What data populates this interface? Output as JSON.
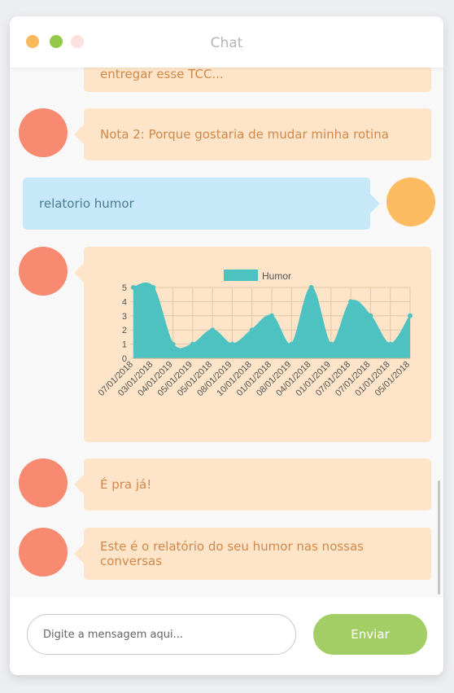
{
  "window": {
    "title": "Chat"
  },
  "messages": [
    {
      "sender": "bot",
      "text": "entregar esse TCC..."
    },
    {
      "sender": "bot",
      "text": "Nota 2: Porque gostaria de mudar minha rotina"
    },
    {
      "sender": "user",
      "text": "relatorio humor"
    },
    {
      "sender": "bot",
      "text": ""
    },
    {
      "sender": "bot",
      "text": "É pra já!"
    },
    {
      "sender": "bot",
      "text": "Este é o relatório do seu humor nas nossas conversas"
    }
  ],
  "chart_data": {
    "type": "area",
    "series": [
      {
        "name": "Humor",
        "values": [
          5,
          5,
          1,
          1,
          2,
          1,
          2,
          3,
          1,
          5,
          1,
          4,
          3,
          1,
          3
        ]
      }
    ],
    "categories": [
      "07/01/2018",
      "03/01/2018",
      "04/01/2019",
      "05/01/2019",
      "05/01/2018",
      "08/01/2019",
      "10/01/2018",
      "01/01/2018",
      "08/01/2019",
      "04/01/2018",
      "01/01/2019",
      "07/01/2018",
      "07/01/2018",
      "01/01/2018",
      "05/01/2018"
    ],
    "ylim": [
      0,
      5
    ],
    "yticks": [
      "0",
      "1",
      "2",
      "3",
      "4",
      "5"
    ],
    "legend_position": "top",
    "grid": true,
    "colors": {
      "fill": "#4ec1c1",
      "grid": "#e0c8a6",
      "text": "#555555"
    }
  },
  "input": {
    "placeholder": "Digite a mensagem aqui...",
    "value": ""
  },
  "send_button": {
    "label": "Enviar"
  }
}
